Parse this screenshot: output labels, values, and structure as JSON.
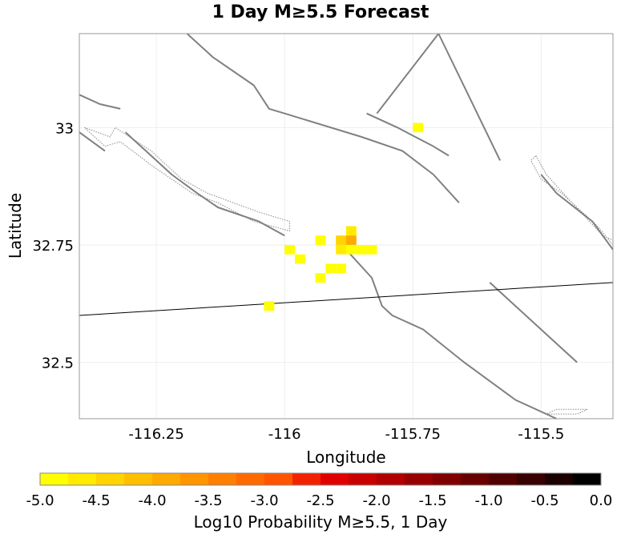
{
  "chart_data": {
    "type": "heatmap",
    "title": "1 Day M≥5.5 Forecast",
    "xlabel": "Longitude",
    "ylabel": "Latitude",
    "xlim": [
      -116.4,
      -115.36
    ],
    "ylim": [
      32.38,
      33.2
    ],
    "x_ticks": [
      {
        "value": -116.25,
        "label": "-116.25"
      },
      {
        "value": -116.0,
        "label": "-116"
      },
      {
        "value": -115.75,
        "label": "-115.75"
      },
      {
        "value": -115.5,
        "label": "-115.5"
      }
    ],
    "y_ticks": [
      {
        "value": 33.0,
        "label": "33"
      },
      {
        "value": 32.75,
        "label": "32.75"
      },
      {
        "value": 32.5,
        "label": "32.5"
      }
    ],
    "grid": true,
    "cell_size_deg": 0.02,
    "cells": [
      {
        "lon": -115.74,
        "lat": 33.0,
        "log10p": -4.9
      },
      {
        "lon": -115.87,
        "lat": 32.78,
        "log10p": -4.6
      },
      {
        "lon": -115.87,
        "lat": 32.76,
        "log10p": -4.0
      },
      {
        "lon": -115.89,
        "lat": 32.76,
        "log10p": -4.5
      },
      {
        "lon": -115.89,
        "lat": 32.74,
        "log10p": -4.6
      },
      {
        "lon": -115.87,
        "lat": 32.74,
        "log10p": -4.8
      },
      {
        "lon": -115.85,
        "lat": 32.74,
        "log10p": -4.9
      },
      {
        "lon": -115.83,
        "lat": 32.74,
        "log10p": -4.9
      },
      {
        "lon": -115.93,
        "lat": 32.76,
        "log10p": -4.9
      },
      {
        "lon": -115.99,
        "lat": 32.74,
        "log10p": -4.9
      },
      {
        "lon": -115.97,
        "lat": 32.72,
        "log10p": -4.9
      },
      {
        "lon": -115.91,
        "lat": 32.7,
        "log10p": -4.8
      },
      {
        "lon": -115.89,
        "lat": 32.7,
        "log10p": -4.8
      },
      {
        "lon": -115.93,
        "lat": 32.68,
        "log10p": -4.9
      },
      {
        "lon": -116.03,
        "lat": 32.62,
        "log10p": -4.9
      }
    ],
    "faults": [
      [
        [
          -116.19,
          33.2
        ],
        [
          -116.14,
          33.15
        ],
        [
          -116.06,
          33.09
        ],
        [
          -116.03,
          33.04
        ],
        [
          -116.0,
          33.03
        ],
        [
          -115.85,
          32.98
        ],
        [
          -115.77,
          32.95
        ],
        [
          -115.71,
          32.9
        ],
        [
          -115.66,
          32.84
        ]
      ],
      [
        [
          -115.84,
          33.03
        ],
        [
          -115.78,
          33.0
        ],
        [
          -115.71,
          32.96
        ],
        [
          -115.68,
          32.94
        ]
      ],
      [
        [
          -115.82,
          33.03
        ],
        [
          -115.7,
          33.2
        ]
      ],
      [
        [
          -115.7,
          33.2
        ],
        [
          -115.58,
          32.93
        ]
      ],
      [
        [
          -116.4,
          33.07
        ],
        [
          -116.36,
          33.05
        ],
        [
          -116.32,
          33.04
        ]
      ],
      [
        [
          -116.4,
          32.99
        ],
        [
          -116.35,
          32.95
        ]
      ],
      [
        [
          -116.31,
          32.99
        ],
        [
          -116.25,
          32.93
        ],
        [
          -116.22,
          32.9
        ],
        [
          -116.17,
          32.86
        ],
        [
          -116.13,
          32.83
        ],
        [
          -116.05,
          32.8
        ],
        [
          -116.0,
          32.77
        ]
      ],
      [
        [
          -115.88,
          32.74
        ],
        [
          -115.83,
          32.68
        ],
        [
          -115.81,
          32.62
        ],
        [
          -115.79,
          32.6
        ],
        [
          -115.73,
          32.57
        ],
        [
          -115.65,
          32.5
        ],
        [
          -115.55,
          32.42
        ],
        [
          -115.47,
          32.38
        ]
      ],
      [
        [
          -115.6,
          32.67
        ],
        [
          -115.43,
          32.5
        ]
      ],
      [
        [
          -115.5,
          32.9
        ],
        [
          -115.47,
          32.86
        ],
        [
          -115.4,
          32.8
        ],
        [
          -115.36,
          32.74
        ]
      ]
    ],
    "fault_zones": [
      [
        [
          -116.39,
          33.0
        ],
        [
          -116.34,
          32.98
        ],
        [
          -116.33,
          33.0
        ],
        [
          -116.26,
          32.95
        ],
        [
          -116.2,
          32.89
        ],
        [
          -116.15,
          32.86
        ],
        [
          -116.1,
          32.84
        ],
        [
          -116.05,
          32.82
        ],
        [
          -115.99,
          32.8
        ],
        [
          -115.99,
          32.78
        ],
        [
          -116.06,
          32.8
        ],
        [
          -116.13,
          32.84
        ],
        [
          -116.18,
          32.86
        ],
        [
          -116.22,
          32.89
        ],
        [
          -116.26,
          32.92
        ],
        [
          -116.32,
          32.97
        ],
        [
          -116.35,
          32.96
        ]
      ],
      [
        [
          -115.51,
          32.94
        ],
        [
          -115.49,
          32.9
        ],
        [
          -115.44,
          32.84
        ],
        [
          -115.38,
          32.77
        ],
        [
          -115.36,
          32.76
        ],
        [
          -115.36,
          32.75
        ],
        [
          -115.39,
          32.79
        ],
        [
          -115.46,
          32.86
        ],
        [
          -115.5,
          32.89
        ],
        [
          -115.52,
          32.93
        ]
      ],
      [
        [
          -115.49,
          32.39
        ],
        [
          -115.43,
          32.39
        ],
        [
          -115.41,
          32.4
        ],
        [
          -115.47,
          32.4
        ]
      ]
    ],
    "border": [
      [
        -116.4,
        32.6
      ],
      [
        -115.36,
        32.67
      ]
    ]
  },
  "colorbar": {
    "min": -5.0,
    "max": 0.0,
    "steps": 20,
    "ticks": [
      "-5.0",
      "-4.5",
      "-4.0",
      "-3.5",
      "-3.0",
      "-2.5",
      "-2.0",
      "-1.5",
      "-1.0",
      "-0.5",
      "0.0"
    ],
    "label": "Log10 Probability M≥5.5, 1 Day",
    "colors": [
      "#ffff00",
      "#ffea00",
      "#ffd400",
      "#ffbf00",
      "#ffaa00",
      "#ff9500",
      "#ff7f00",
      "#ff6a00",
      "#ff5500",
      "#f22200",
      "#e00000",
      "#c80000",
      "#b00000",
      "#980000",
      "#800000",
      "#680000",
      "#500000",
      "#380000",
      "#1c0000",
      "#000000"
    ]
  },
  "style": {
    "fault_color": "#808080",
    "border_color": "#000000",
    "zone_color": "#888888",
    "frame_color": "#999999"
  }
}
